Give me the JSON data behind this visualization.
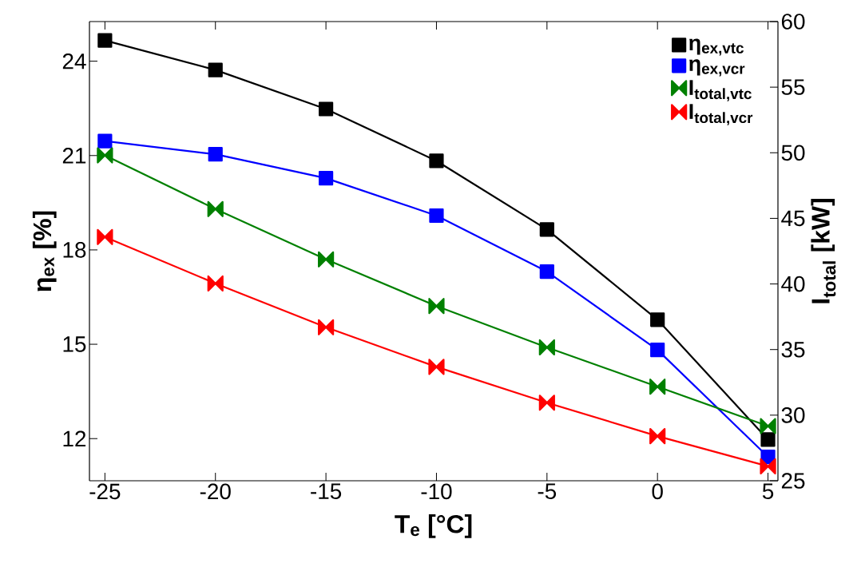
{
  "chart_data": {
    "type": "line",
    "xlabel": "T$_{e}$ [°C]",
    "ylabel": "η$_{ex}$ [%]",
    "y2label": "I$_{total}$ [kW]",
    "x": [
      -25,
      -20,
      -15,
      -10,
      -5,
      0,
      5
    ],
    "xlim": [
      -25.7,
      5.45
    ],
    "xticks": [
      -25,
      -20,
      -15,
      -10,
      -5,
      0,
      5
    ],
    "ylim": [
      10.66,
      25.26
    ],
    "yticks": [
      12,
      15,
      18,
      21,
      24
    ],
    "y2lim": [
      25,
      60
    ],
    "y2ticks": [
      25,
      30,
      35,
      40,
      45,
      50,
      55,
      60
    ],
    "legend": "top right",
    "grid": false,
    "series": [
      {
        "name": "η$_{ex,vtc}$",
        "color": "#000000",
        "marker": "square",
        "values": [
          24.66,
          23.72,
          22.48,
          20.83,
          18.65,
          15.78,
          11.97
        ]
      },
      {
        "name": "η$_{ex,vcr}$",
        "color": "#0000ff",
        "marker": "square",
        "values": [
          21.46,
          21.04,
          20.28,
          19.09,
          17.31,
          14.82,
          11.42
        ]
      },
      {
        "name": "I$_{total,vtc}$",
        "color": "#008000",
        "marker": "diamond",
        "axis": "y2",
        "values": [
          49.8,
          45.71,
          41.87,
          38.32,
          35.17,
          32.17,
          29.17
        ]
      },
      {
        "name": "I$_{total,vcr}$",
        "color": "#ff0000",
        "marker": "diamond",
        "axis": "y2",
        "values": [
          43.58,
          40.04,
          36.7,
          33.68,
          30.95,
          28.4,
          26.1
        ]
      }
    ]
  }
}
